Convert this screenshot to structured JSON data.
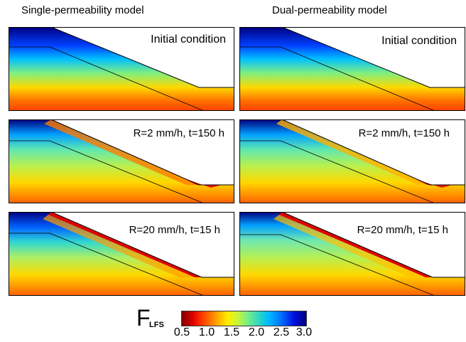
{
  "columns": {
    "left_title": "Single-permeability model",
    "right_title": "Dual-permeability model"
  },
  "rows": {
    "row1_label": "Initial condition",
    "row2_label": "R=2 mm/h, t=150 h",
    "row3_label": "R=20 mm/h, t=15 h"
  },
  "legend": {
    "symbol": "F",
    "subscript": "LFS",
    "ticks": [
      "0.5",
      "1.0",
      "1.5",
      "2.0",
      "2.5",
      "3.0"
    ],
    "colormap": "jet-reversed (red = low, blue = high)"
  }
}
